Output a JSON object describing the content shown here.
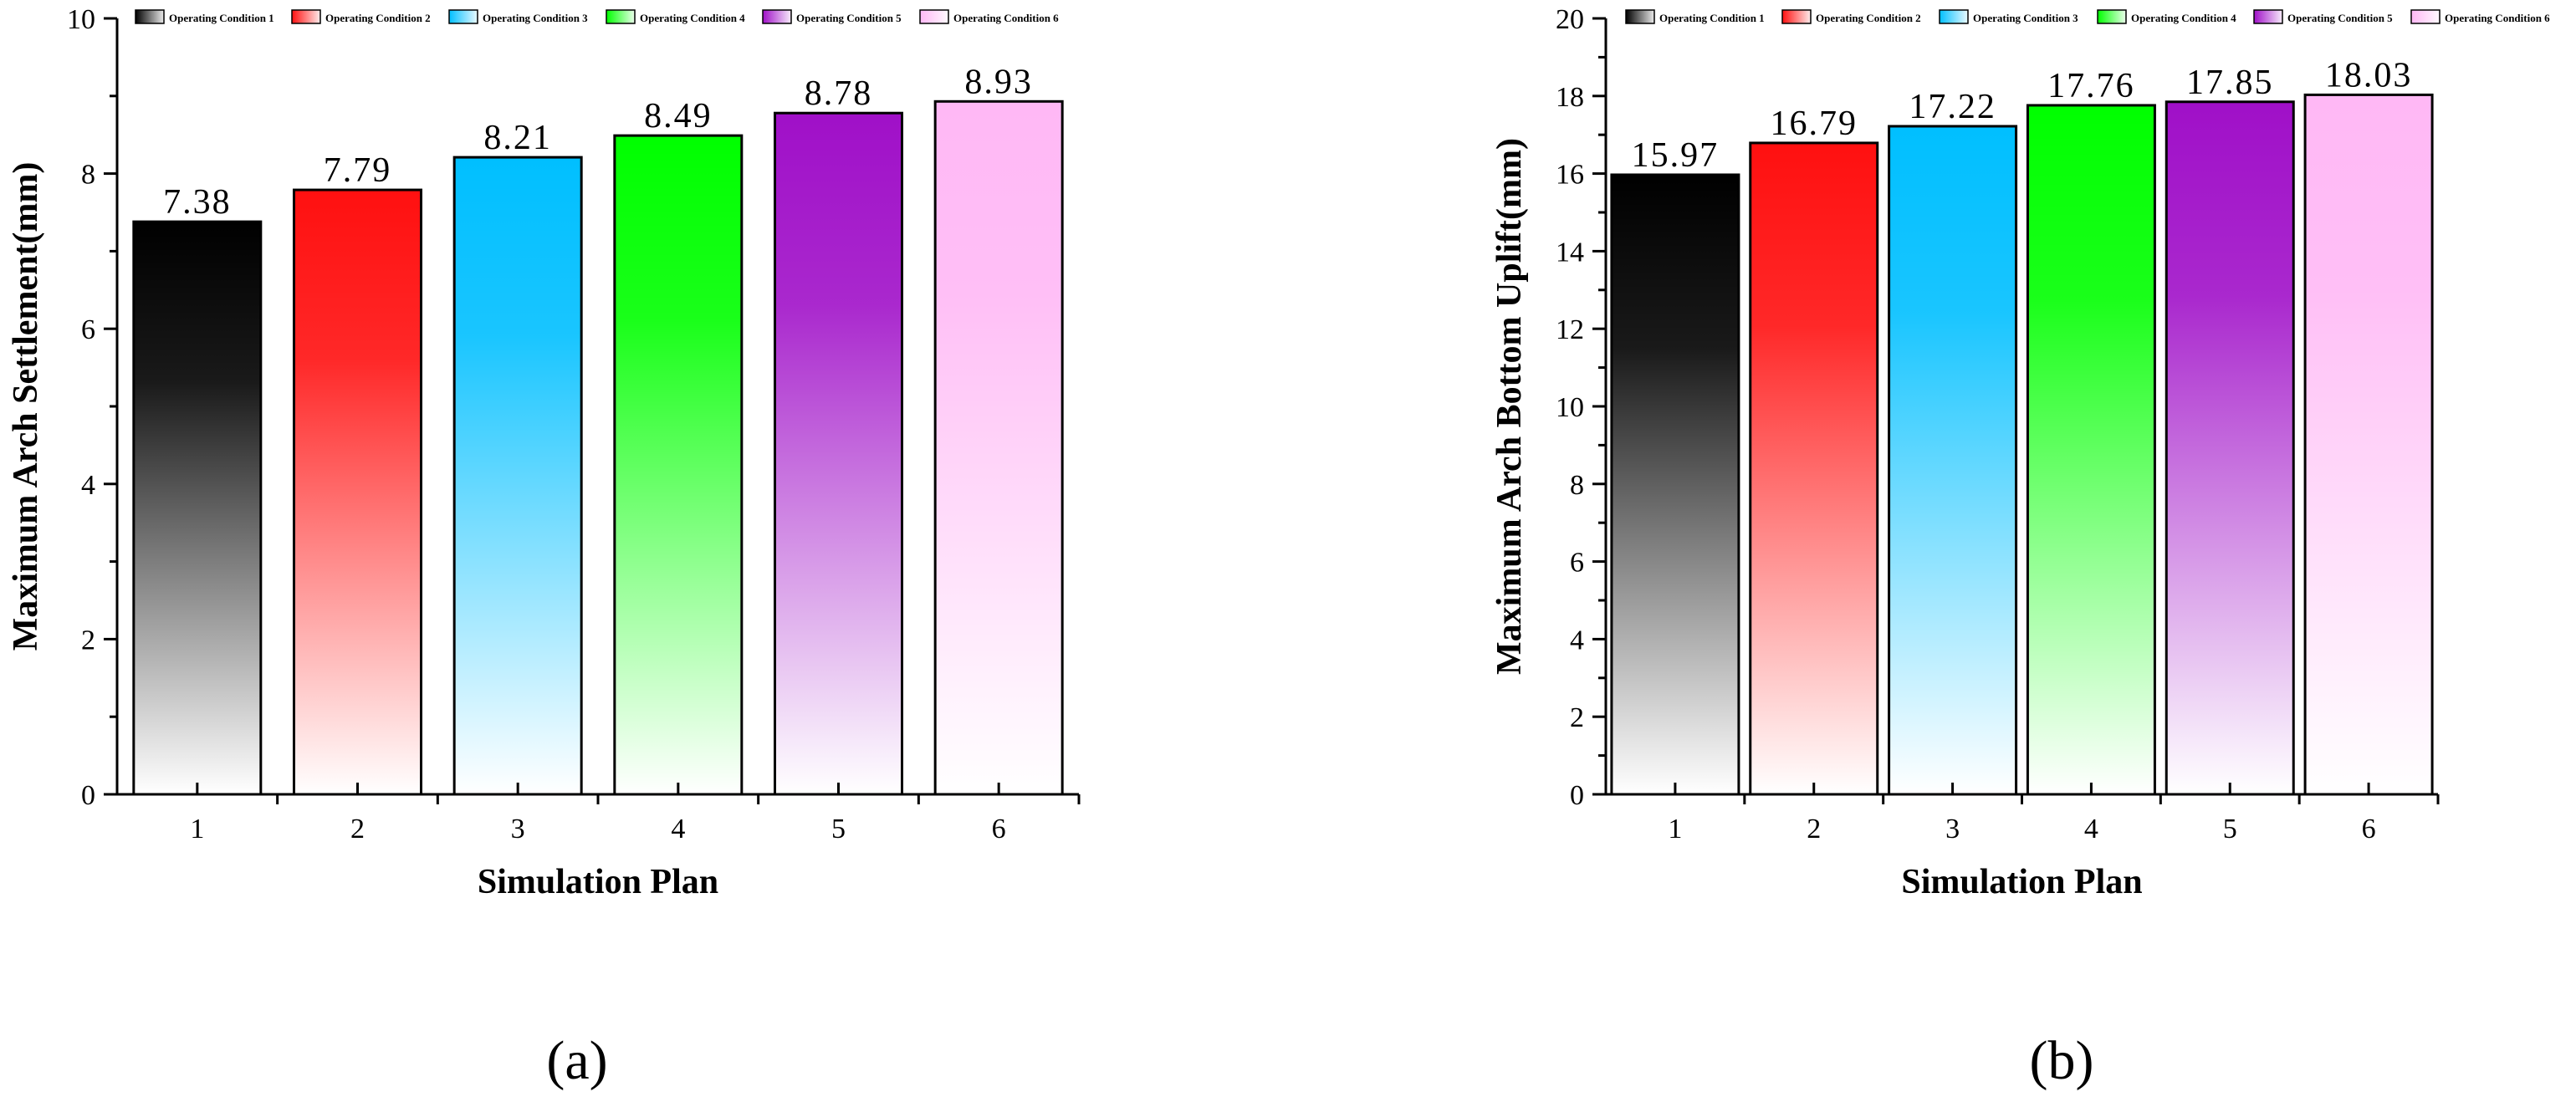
{
  "legend": {
    "entries": [
      "Operating Condition 1",
      "Operating Condition 2",
      "Operating Condition 3",
      "Operating Condition 4",
      "Operating Condition 5",
      "Operating Condition 6"
    ]
  },
  "colors": {
    "series": [
      "#000000",
      "#ff1010",
      "#00bfff",
      "#00ff00",
      "#a010c8",
      "#ffb8f5"
    ]
  },
  "chart_data": [
    {
      "type": "bar",
      "panel_label": "(a)",
      "categories": [
        "1",
        "2",
        "3",
        "4",
        "5",
        "6"
      ],
      "values": [
        7.38,
        7.79,
        8.21,
        8.49,
        8.78,
        8.93
      ],
      "data_labels": [
        "7.38",
        "7.79",
        "8.21",
        "8.49",
        "8.78",
        "8.93"
      ],
      "xlabel": "Simulation Plan",
      "ylabel": "Maximum Arch Settlement(mm)",
      "ylim": [
        0,
        10
      ],
      "yticks": [
        0,
        2,
        4,
        6,
        8,
        10
      ],
      "legend_position": "top",
      "grid": false
    },
    {
      "type": "bar",
      "panel_label": "(b)",
      "categories": [
        "1",
        "2",
        "3",
        "4",
        "5",
        "6"
      ],
      "values": [
        15.97,
        16.79,
        17.22,
        17.76,
        17.85,
        18.03
      ],
      "data_labels": [
        "15.97",
        "16.79",
        "17.22",
        "17.76",
        "17.85",
        "18.03"
      ],
      "xlabel": "Simulation Plan",
      "ylabel": "Maximum Arch Bottom Uplift(mm)",
      "ylim": [
        0,
        20
      ],
      "yticks": [
        0,
        2,
        4,
        6,
        8,
        10,
        12,
        14,
        16,
        18,
        20
      ],
      "legend_position": "top",
      "grid": false
    }
  ]
}
